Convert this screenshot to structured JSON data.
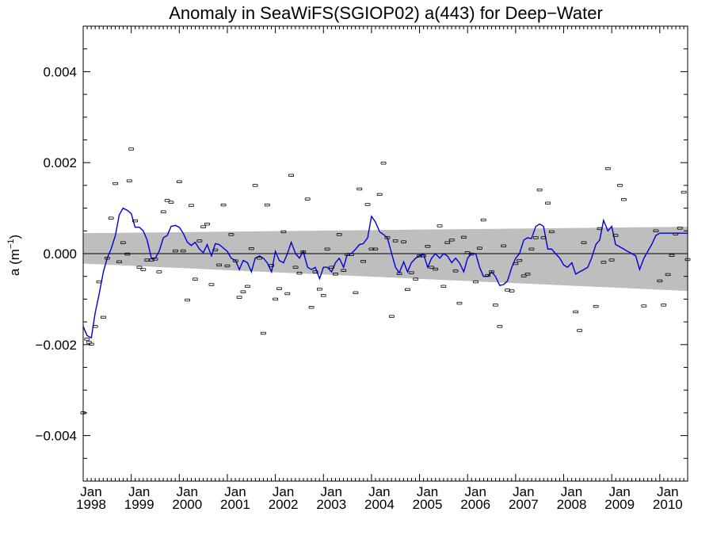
{
  "chart_data": {
    "type": "scatter",
    "title": "Anomaly in SeaWiFS(SGIOP02) a(443) for Deep−Water",
    "ylabel": "a (m",
    "ylabel_sup": "−1",
    "ylabel_close": ")",
    "xlim": [
      1998.0,
      2010.58
    ],
    "ylim": [
      -0.005,
      0.005
    ],
    "yticks": [
      {
        "value": 0.004,
        "label": "0.004"
      },
      {
        "value": 0.002,
        "label": "0.002"
      },
      {
        "value": 0.0,
        "label": "0.000"
      },
      {
        "value": -0.002,
        "label": "−0.002"
      },
      {
        "value": -0.004,
        "label": "−0.004"
      }
    ],
    "xticks": [
      {
        "value": 1998,
        "month": "Jan",
        "year": "1998"
      },
      {
        "value": 1999,
        "month": "Jan",
        "year": "1999"
      },
      {
        "value": 2000,
        "month": "Jan",
        "year": "2000"
      },
      {
        "value": 2001,
        "month": "Jan",
        "year": "2001"
      },
      {
        "value": 2002,
        "month": "Jan",
        "year": "2002"
      },
      {
        "value": 2003,
        "month": "Jan",
        "year": "2003"
      },
      {
        "value": 2004,
        "month": "Jan",
        "year": "2004"
      },
      {
        "value": 2005,
        "month": "Jan",
        "year": "2005"
      },
      {
        "value": 2006,
        "month": "Jan",
        "year": "2006"
      },
      {
        "value": 2007,
        "month": "Jan",
        "year": "2007"
      },
      {
        "value": 2008,
        "month": "Jan",
        "year": "2008"
      },
      {
        "value": 2009,
        "month": "Jan",
        "year": "2009"
      },
      {
        "value": 2010,
        "month": "Jan",
        "year": "2010"
      }
    ],
    "confidence_band": {
      "color": "#bebebe",
      "upper": [
        [
          1998.0,
          0.00045
        ],
        [
          2010.58,
          0.00059
        ]
      ],
      "lower": [
        [
          1998.0,
          -0.00022
        ],
        [
          2010.58,
          -0.00082
        ]
      ]
    },
    "zero_line": 0.0,
    "points": [
      [
        1998.0,
        -0.0035
      ],
      [
        1998.08,
        -0.00188
      ],
      [
        1998.12,
        -0.00195
      ],
      [
        1998.17,
        -0.00199
      ],
      [
        1998.25,
        -0.0016
      ],
      [
        1998.33,
        -0.00062
      ],
      [
        1998.42,
        -0.0014
      ],
      [
        1998.5,
        -0.0001
      ],
      [
        1998.58,
        0.00078
      ],
      [
        1998.67,
        0.00154
      ],
      [
        1998.75,
        -0.00018
      ],
      [
        1998.83,
        0.00024
      ],
      [
        1998.92,
        -1e-05
      ],
      [
        1998.96,
        0.0016
      ],
      [
        1999.0,
        0.0023
      ],
      [
        1999.08,
        0.00072
      ],
      [
        1999.17,
        -0.0003
      ],
      [
        1999.25,
        -0.00035
      ],
      [
        1999.33,
        -0.00014
      ],
      [
        1999.42,
        -0.00014
      ],
      [
        1999.5,
        -0.00012
      ],
      [
        1999.58,
        -0.0004
      ],
      [
        1999.67,
        0.00092
      ],
      [
        1999.75,
        0.00117
      ],
      [
        1999.83,
        0.00113
      ],
      [
        1999.92,
        6e-05
      ],
      [
        2000.0,
        0.00158
      ],
      [
        2000.08,
        6e-05
      ],
      [
        2000.17,
        -0.00102
      ],
      [
        2000.25,
        0.00106
      ],
      [
        2000.33,
        -0.00056
      ],
      [
        2000.42,
        0.00028
      ],
      [
        2000.5,
        0.00059
      ],
      [
        2000.58,
        0.00065
      ],
      [
        2000.67,
        -0.00068
      ],
      [
        2000.75,
        8e-05
      ],
      [
        2000.83,
        -0.00025
      ],
      [
        2000.92,
        0.00107
      ],
      [
        2001.0,
        -0.00027
      ],
      [
        2001.08,
        0.00042
      ],
      [
        2001.17,
        -0.00016
      ],
      [
        2001.25,
        -0.00096
      ],
      [
        2001.33,
        -0.00084
      ],
      [
        2001.42,
        -0.00072
      ],
      [
        2001.5,
        0.00011
      ],
      [
        2001.58,
        0.0015
      ],
      [
        2001.67,
        -0.0001
      ],
      [
        2001.75,
        -0.00175
      ],
      [
        2001.83,
        0.00107
      ],
      [
        2001.92,
        -0.00026
      ],
      [
        2002.0,
        -0.001
      ],
      [
        2002.08,
        -0.00077
      ],
      [
        2002.17,
        0.00048
      ],
      [
        2002.25,
        -0.00088
      ],
      [
        2002.33,
        0.00172
      ],
      [
        2002.42,
        -0.0003
      ],
      [
        2002.5,
        -0.00043
      ],
      [
        2002.58,
        4e-05
      ],
      [
        2002.67,
        0.0012
      ],
      [
        2002.75,
        -0.00118
      ],
      [
        2002.83,
        -0.0004
      ],
      [
        2002.92,
        -0.00078
      ],
      [
        2003.0,
        -0.00092
      ],
      [
        2003.08,
        0.0001
      ],
      [
        2003.17,
        -0.0003
      ],
      [
        2003.25,
        -0.00045
      ],
      [
        2003.33,
        0.00042
      ],
      [
        2003.42,
        -0.00037
      ],
      [
        2003.5,
        -2e-05
      ],
      [
        2003.58,
        -2e-05
      ],
      [
        2003.67,
        -0.00086
      ],
      [
        2003.75,
        0.00142
      ],
      [
        2003.83,
        -0.00017
      ],
      [
        2003.92,
        0.00108
      ],
      [
        2004.0,
        0.0001
      ],
      [
        2004.08,
        0.0001
      ],
      [
        2004.17,
        0.0013
      ],
      [
        2004.25,
        0.00199
      ],
      [
        2004.33,
        0.00035
      ],
      [
        2004.42,
        -0.00138
      ],
      [
        2004.5,
        0.00028
      ],
      [
        2004.58,
        -0.00044
      ],
      [
        2004.67,
        0.00026
      ],
      [
        2004.75,
        -0.00079
      ],
      [
        2004.83,
        -0.00042
      ],
      [
        2004.92,
        -0.00056
      ],
      [
        2005.0,
        -5e-05
      ],
      [
        2005.08,
        -5e-05
      ],
      [
        2005.17,
        0.00016
      ],
      [
        2005.25,
        -0.0003
      ],
      [
        2005.33,
        -0.00034
      ],
      [
        2005.42,
        0.00061
      ],
      [
        2005.5,
        -0.00072
      ],
      [
        2005.58,
        0.00024
      ],
      [
        2005.67,
        0.0003
      ],
      [
        2005.75,
        -0.00038
      ],
      [
        2005.83,
        -0.00109
      ],
      [
        2005.92,
        0.00036
      ],
      [
        2006.0,
        2e-05
      ],
      [
        2006.08,
        -1e-05
      ],
      [
        2006.17,
        -0.00062
      ],
      [
        2006.25,
        0.00012
      ],
      [
        2006.33,
        0.00074
      ],
      [
        2006.42,
        -0.00048
      ],
      [
        2006.5,
        -0.0004
      ],
      [
        2006.58,
        -0.00113
      ],
      [
        2006.67,
        -0.0016
      ],
      [
        2006.75,
        0.00017
      ],
      [
        2006.83,
        -0.0008
      ],
      [
        2006.92,
        -0.00082
      ],
      [
        2007.0,
        -0.00022
      ],
      [
        2007.08,
        -0.00015
      ],
      [
        2007.17,
        -0.00049
      ],
      [
        2007.25,
        -0.00045
      ],
      [
        2007.33,
        0.0001
      ],
      [
        2007.42,
        0.00035
      ],
      [
        2007.5,
        0.0014
      ],
      [
        2007.58,
        0.00035
      ],
      [
        2007.67,
        0.00111
      ],
      [
        2007.75,
        0.00048
      ],
      [
        2008.25,
        -0.00128
      ],
      [
        2008.33,
        -0.00169
      ],
      [
        2008.42,
        0.00024
      ],
      [
        2008.67,
        -0.00116
      ],
      [
        2008.75,
        0.00055
      ],
      [
        2008.83,
        -0.00019
      ],
      [
        2008.92,
        0.00187
      ],
      [
        2009.0,
        -0.00014
      ],
      [
        2009.08,
        0.0004
      ],
      [
        2009.17,
        0.0015
      ],
      [
        2009.25,
        0.00119
      ],
      [
        2009.67,
        -0.00115
      ],
      [
        2009.92,
        0.0005
      ],
      [
        2010.0,
        -0.0006
      ],
      [
        2010.08,
        -0.00113
      ],
      [
        2010.17,
        -0.00046
      ],
      [
        2010.25,
        -4e-05
      ],
      [
        2010.33,
        0.00043
      ],
      [
        2010.42,
        0.00056
      ],
      [
        2010.5,
        0.00135
      ],
      [
        2010.58,
        -0.00013
      ]
    ],
    "smoothed_line": {
      "color": "#0000dd",
      "points": [
        [
          1998.0,
          -0.0016
        ],
        [
          1998.08,
          -0.0018
        ],
        [
          1998.17,
          -0.00185
        ],
        [
          1998.25,
          -0.0013
        ],
        [
          1998.33,
          -0.0009
        ],
        [
          1998.42,
          -0.0004
        ],
        [
          1998.5,
          -0.0001
        ],
        [
          1998.58,
          0.0001
        ],
        [
          1998.67,
          0.0004
        ],
        [
          1998.75,
          0.00085
        ],
        [
          1998.83,
          0.001
        ],
        [
          1998.92,
          0.00095
        ],
        [
          1999.0,
          0.00088
        ],
        [
          1999.08,
          0.00058
        ],
        [
          1999.17,
          0.00058
        ],
        [
          1999.25,
          0.0005
        ],
        [
          1999.33,
          0.0003
        ],
        [
          1999.42,
          -0.0001
        ],
        [
          1999.5,
          -0.0001
        ],
        [
          1999.58,
          5e-05
        ],
        [
          1999.67,
          0.00035
        ],
        [
          1999.75,
          0.0004
        ],
        [
          1999.83,
          0.0006
        ],
        [
          1999.92,
          0.00062
        ],
        [
          2000.0,
          0.00058
        ],
        [
          2000.08,
          0.00045
        ],
        [
          2000.17,
          0.00025
        ],
        [
          2000.25,
          0.00018
        ],
        [
          2000.33,
          0.00025
        ],
        [
          2000.42,
          0.0001
        ],
        [
          2000.5,
          2e-05
        ],
        [
          2000.58,
          0.0002
        ],
        [
          2000.67,
          -5e-05
        ],
        [
          2000.75,
          0.00022
        ],
        [
          2000.83,
          0.0002
        ],
        [
          2000.92,
          0.00012
        ],
        [
          2001.0,
          5e-05
        ],
        [
          2001.08,
          -0.0001
        ],
        [
          2001.17,
          -0.00015
        ],
        [
          2001.25,
          -0.00035
        ],
        [
          2001.33,
          -0.00015
        ],
        [
          2001.42,
          -0.0002
        ],
        [
          2001.5,
          -0.0004
        ],
        [
          2001.58,
          -0.0001
        ],
        [
          2001.67,
          -5e-05
        ],
        [
          2001.75,
          -0.0001
        ],
        [
          2001.83,
          -0.0002
        ],
        [
          2001.92,
          -0.0004
        ],
        [
          2002.0,
          5e-05
        ],
        [
          2002.08,
          -0.00015
        ],
        [
          2002.17,
          -0.0002
        ],
        [
          2002.25,
          0.0
        ],
        [
          2002.33,
          0.00025
        ],
        [
          2002.42,
          0.0
        ],
        [
          2002.5,
          -0.0001
        ],
        [
          2002.58,
          5e-05
        ],
        [
          2002.67,
          -0.0003
        ],
        [
          2002.75,
          -0.00035
        ],
        [
          2002.83,
          -0.0003
        ],
        [
          2002.92,
          -0.00055
        ],
        [
          2003.0,
          -0.0003
        ],
        [
          2003.08,
          -0.0003
        ],
        [
          2003.17,
          -0.0004
        ],
        [
          2003.25,
          -0.0002
        ],
        [
          2003.33,
          -0.0001
        ],
        [
          2003.42,
          -0.0003
        ],
        [
          2003.5,
          0.0
        ],
        [
          2003.58,
          0.0
        ],
        [
          2003.67,
          0.0001
        ],
        [
          2003.75,
          0.0002
        ],
        [
          2003.83,
          0.00022
        ],
        [
          2003.92,
          0.00035
        ],
        [
          2004.0,
          0.00082
        ],
        [
          2004.08,
          0.0007
        ],
        [
          2004.17,
          0.00048
        ],
        [
          2004.25,
          0.00042
        ],
        [
          2004.33,
          0.00035
        ],
        [
          2004.42,
          0.0
        ],
        [
          2004.5,
          -0.0003
        ],
        [
          2004.58,
          -0.00042
        ],
        [
          2004.67,
          -0.00018
        ],
        [
          2004.75,
          -0.0004
        ],
        [
          2004.83,
          -0.0002
        ],
        [
          2004.92,
          -0.0001
        ],
        [
          2005.0,
          -5e-05
        ],
        [
          2005.08,
          0.0
        ],
        [
          2005.17,
          -0.0003
        ],
        [
          2005.25,
          -0.0001
        ],
        [
          2005.33,
          0.0
        ],
        [
          2005.42,
          -0.0001
        ],
        [
          2005.5,
          0.0
        ],
        [
          2005.58,
          -5e-05
        ],
        [
          2005.67,
          -0.0002
        ],
        [
          2005.75,
          -0.0001
        ],
        [
          2005.83,
          -0.0002
        ],
        [
          2005.92,
          -0.0004
        ],
        [
          2006.0,
          -0.0001
        ],
        [
          2006.08,
          0.0
        ],
        [
          2006.17,
          0.0
        ],
        [
          2006.25,
          -0.0003
        ],
        [
          2006.33,
          -0.0005
        ],
        [
          2006.42,
          -0.0005
        ],
        [
          2006.5,
          -0.0004
        ],
        [
          2006.58,
          -0.0005
        ],
        [
          2006.67,
          -0.0007
        ],
        [
          2006.75,
          -0.00068
        ],
        [
          2006.83,
          -0.0006
        ],
        [
          2006.92,
          -0.0003
        ],
        [
          2007.0,
          -0.0001
        ],
        [
          2007.08,
          0.0
        ],
        [
          2007.17,
          0.0003
        ],
        [
          2007.25,
          0.00035
        ],
        [
          2007.33,
          0.00033
        ],
        [
          2007.42,
          0.0006
        ],
        [
          2007.5,
          0.00065
        ],
        [
          2007.58,
          0.0006
        ],
        [
          2007.67,
          0.0001
        ],
        [
          2007.75,
          0.0001
        ],
        [
          2007.83,
          0.0
        ],
        [
          2007.92,
          -0.0001
        ],
        [
          2008.0,
          -0.00025
        ],
        [
          2008.08,
          -0.0003
        ],
        [
          2008.17,
          -0.0002
        ],
        [
          2008.25,
          -0.00045
        ],
        [
          2008.33,
          -0.0004
        ],
        [
          2008.42,
          -0.00035
        ],
        [
          2008.5,
          -0.0003
        ],
        [
          2008.58,
          -0.0001
        ],
        [
          2008.67,
          0.0002
        ],
        [
          2008.75,
          0.0003
        ],
        [
          2008.83,
          0.00073
        ],
        [
          2008.92,
          0.0005
        ],
        [
          2009.0,
          0.0006
        ],
        [
          2009.08,
          0.0002
        ],
        [
          2009.17,
          0.00015
        ],
        [
          2009.25,
          0.0001
        ],
        [
          2009.33,
          5e-05
        ],
        [
          2009.42,
          0.0
        ],
        [
          2009.5,
          -5e-05
        ],
        [
          2009.58,
          -0.00035
        ],
        [
          2009.67,
          -0.0001
        ],
        [
          2009.75,
          5e-05
        ],
        [
          2009.83,
          0.0002
        ],
        [
          2009.92,
          0.0004
        ],
        [
          2010.0,
          0.00045
        ],
        [
          2010.58,
          0.00045
        ]
      ]
    }
  }
}
